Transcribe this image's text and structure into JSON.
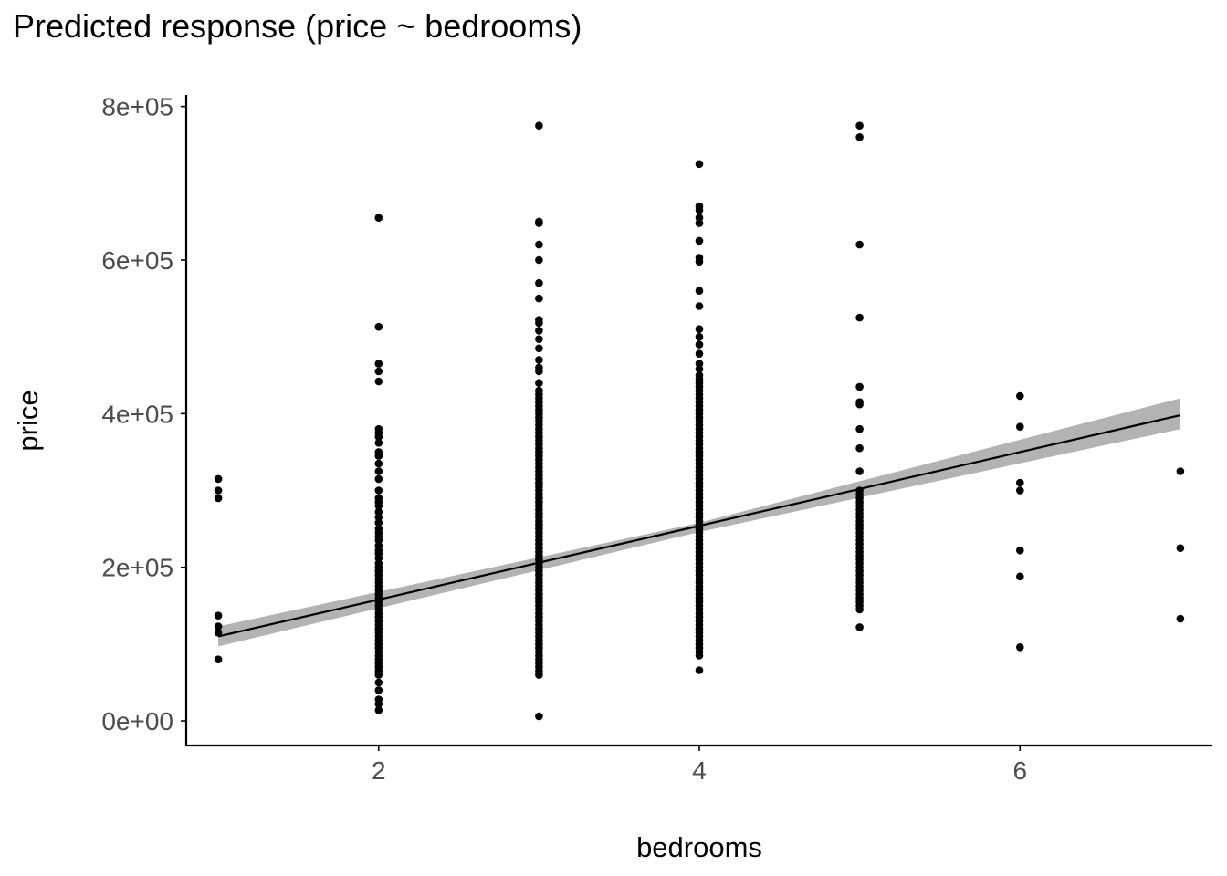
{
  "chart_data": {
    "type": "scatter",
    "title": "Predicted response (price ~ bedrooms)",
    "xlabel": "bedrooms",
    "ylabel": "price",
    "xlim": [
      0.8,
      7.2
    ],
    "ylim": [
      -32000,
      815000
    ],
    "xticks": [
      2,
      4,
      6
    ],
    "xtick_labels": [
      "2",
      "4",
      "6"
    ],
    "yticks": [
      0,
      200000,
      400000,
      600000,
      800000
    ],
    "ytick_labels": [
      "0e+00",
      "2e+05",
      "4e+05",
      "6e+05",
      "8e+05"
    ],
    "grid": false,
    "legend": "none",
    "colors": {
      "points": "#000000",
      "line": "#000000",
      "ribbon": "#b3b3b3",
      "text": "#4d4d4d"
    },
    "points": {
      "1": [
        315000,
        300000,
        290000,
        137000,
        123000,
        115000,
        80000
      ],
      "2": [
        655000,
        513000,
        465000,
        455000,
        442000,
        380000,
        375000,
        370000,
        362000,
        350000,
        345000,
        335000,
        325000,
        315000,
        300000,
        290000,
        285000,
        280000,
        272000,
        265000,
        258000,
        250000,
        245000,
        240000,
        235000,
        228000,
        222000,
        218000,
        212000,
        205000,
        200000,
        195000,
        190000,
        185000,
        180000,
        175000,
        170000,
        165000,
        160000,
        155000,
        150000,
        145000,
        140000,
        135000,
        130000,
        125000,
        120000,
        115000,
        110000,
        105000,
        100000,
        95000,
        90000,
        85000,
        80000,
        75000,
        70000,
        65000,
        60000,
        50000,
        40000,
        28000,
        22000,
        14000
      ],
      "3": [
        775000,
        650000,
        648000,
        620000,
        600000,
        570000,
        550000,
        522000,
        518000,
        508000,
        497000,
        485000,
        470000,
        460000,
        455000,
        440000,
        430000,
        425000,
        420000,
        415000,
        410000,
        405000,
        400000,
        395000,
        390000,
        385000,
        380000,
        375000,
        370000,
        365000,
        360000,
        355000,
        350000,
        345000,
        340000,
        335000,
        330000,
        325000,
        320000,
        315000,
        310000,
        305000,
        300000,
        295000,
        290000,
        285000,
        280000,
        275000,
        270000,
        265000,
        260000,
        255000,
        250000,
        245000,
        240000,
        235000,
        230000,
        225000,
        220000,
        215000,
        210000,
        205000,
        200000,
        195000,
        190000,
        185000,
        180000,
        175000,
        170000,
        165000,
        160000,
        155000,
        150000,
        145000,
        140000,
        135000,
        130000,
        125000,
        120000,
        115000,
        110000,
        105000,
        100000,
        95000,
        90000,
        85000,
        80000,
        75000,
        70000,
        65000,
        60000,
        6000
      ],
      "4": [
        725000,
        670000,
        665000,
        655000,
        648000,
        625000,
        603000,
        598000,
        560000,
        540000,
        510000,
        500000,
        490000,
        478000,
        465000,
        458000,
        450000,
        445000,
        440000,
        435000,
        430000,
        425000,
        420000,
        415000,
        410000,
        405000,
        400000,
        395000,
        390000,
        385000,
        380000,
        375000,
        370000,
        365000,
        360000,
        355000,
        350000,
        345000,
        340000,
        335000,
        330000,
        325000,
        320000,
        315000,
        310000,
        305000,
        300000,
        295000,
        290000,
        285000,
        280000,
        275000,
        270000,
        265000,
        260000,
        255000,
        250000,
        245000,
        240000,
        235000,
        230000,
        225000,
        220000,
        215000,
        210000,
        205000,
        200000,
        195000,
        190000,
        185000,
        180000,
        175000,
        170000,
        165000,
        160000,
        155000,
        150000,
        145000,
        140000,
        135000,
        130000,
        125000,
        120000,
        115000,
        110000,
        105000,
        100000,
        95000,
        90000,
        85000,
        66000
      ],
      "5": [
        775000,
        760000,
        620000,
        525000,
        435000,
        415000,
        412000,
        380000,
        355000,
        325000,
        300000,
        295000,
        290000,
        285000,
        280000,
        275000,
        270000,
        265000,
        260000,
        255000,
        250000,
        245000,
        240000,
        235000,
        230000,
        225000,
        220000,
        215000,
        210000,
        205000,
        200000,
        195000,
        190000,
        185000,
        180000,
        175000,
        170000,
        165000,
        160000,
        155000,
        150000,
        145000,
        122000
      ],
      "6": [
        423000,
        383000,
        310000,
        300000,
        222000,
        188000,
        96000
      ],
      "7": [
        325000,
        225000,
        133000
      ]
    },
    "fit": {
      "x": [
        1,
        7
      ],
      "y": [
        110000,
        398000
      ]
    },
    "ribbon": {
      "x": [
        1,
        4,
        7
      ],
      "lower": [
        97000,
        246000,
        380000
      ],
      "upper": [
        123000,
        258000,
        420000
      ]
    }
  }
}
